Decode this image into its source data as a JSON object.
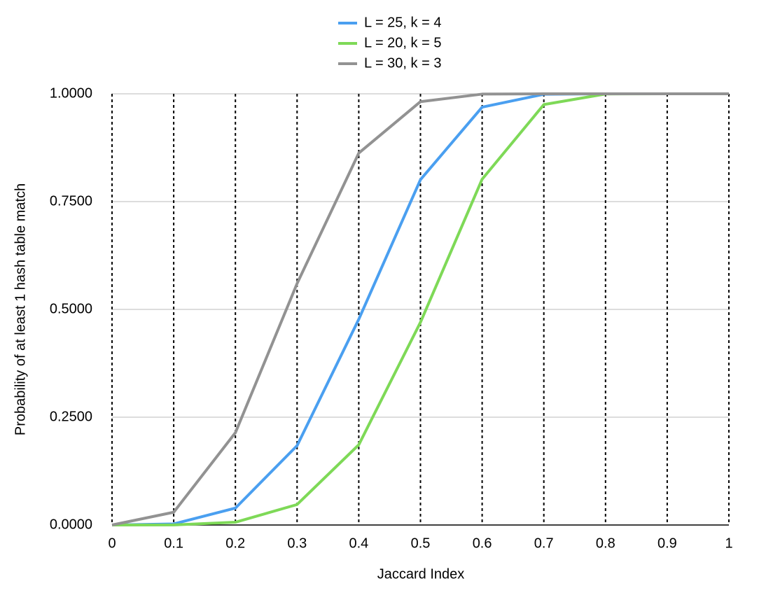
{
  "chart_data": {
    "type": "line",
    "x_label": "Jaccard Index",
    "y_label": "Probability of at least 1 hash table match",
    "x": [
      0,
      0.1,
      0.2,
      0.3,
      0.4,
      0.5,
      0.6,
      0.7,
      0.8,
      0.9,
      1
    ],
    "series": [
      {
        "name": "L = 25, k = 4",
        "color": "#4a9ff0",
        "values": [
          0,
          0.0025,
          0.0392,
          0.1841,
          0.4771,
          0.8009,
          0.969,
          0.999,
          1,
          1,
          1
        ]
      },
      {
        "name": "L = 20, k = 5",
        "color": "#7ed957",
        "values": [
          0,
          0.0002,
          0.0064,
          0.0475,
          0.186,
          0.4701,
          0.802,
          0.975,
          0.9996,
          1,
          1
        ]
      },
      {
        "name": "L = 30, k = 3",
        "color": "#929292",
        "values": [
          0,
          0.0296,
          0.2141,
          0.56,
          0.8625,
          0.9818,
          0.9993,
          1,
          1,
          1,
          1
        ]
      }
    ],
    "xlim": [
      0,
      1
    ],
    "xticks": [
      0,
      0.1,
      0.2,
      0.3,
      0.4,
      0.5,
      0.6,
      0.7,
      0.8,
      0.9,
      1
    ],
    "ylim": [
      0,
      1
    ],
    "yticks": [
      {
        "value": 0,
        "label": "0.0000"
      },
      {
        "value": 0.25,
        "label": "0.2500"
      },
      {
        "value": 0.5,
        "label": "0.5000"
      },
      {
        "value": 0.75,
        "label": "0.7500"
      },
      {
        "value": 1,
        "label": "1.0000"
      }
    ],
    "grid": true,
    "legend": "top"
  }
}
